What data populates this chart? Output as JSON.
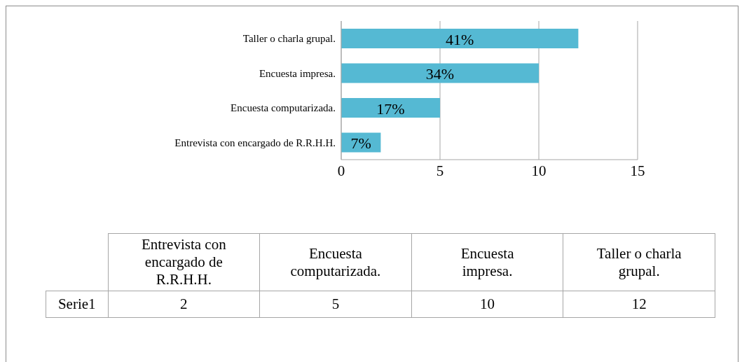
{
  "chart_data": [
    {
      "type": "bar",
      "orientation": "horizontal",
      "categories": [
        "Taller o charla grupal.",
        "Encuesta impresa.",
        "Encuesta computarizada.",
        "Entrevista con encargado de R.R.H.H."
      ],
      "series": [
        {
          "color": "#55b9d3",
          "values": [
            12,
            10,
            5,
            2
          ]
        }
      ],
      "annotations": [
        "41%",
        "34%",
        "17%",
        "7%"
      ],
      "xlim": [
        0,
        15
      ],
      "xticks": [
        0,
        5,
        10,
        15
      ],
      "grid": "x"
    },
    {
      "type": "other",
      "categories": [
        "Entrevista con encargado de R.R.H.H.",
        "Encuesta computarizada.",
        "Encuesta impresa.",
        "Taller o charla grupal."
      ],
      "series": [
        {
          "name": "Serie1",
          "values": [
            2,
            5,
            10,
            12
          ]
        }
      ],
      "data_labels": true
    }
  ]
}
